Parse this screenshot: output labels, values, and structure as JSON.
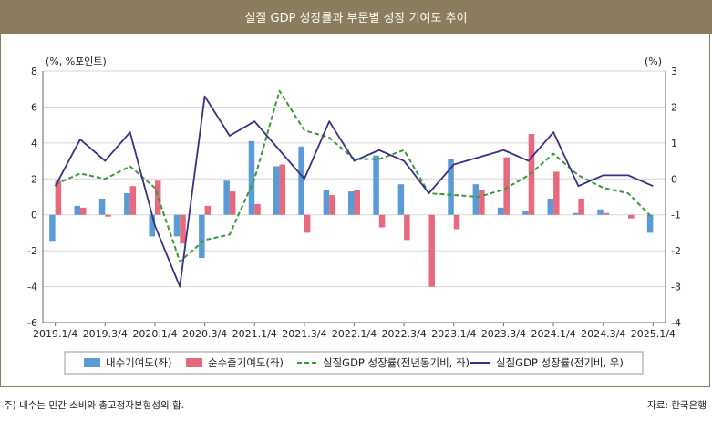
{
  "title": "실질 GDP 성장률과 부문별 성장 기여도 추이",
  "footnote": "주) 내수는 민간 소비와 총고정자본형성의 합.",
  "source": "자료: 한국은행",
  "chart_data": {
    "type": "bar",
    "left_unit": "(%, %포인트)",
    "right_unit": "(%)",
    "left_ylim": [
      -6,
      8
    ],
    "left_ticks": [
      "-6",
      "-4",
      "-2",
      "0",
      "2",
      "4",
      "6",
      "8"
    ],
    "right_ylim": [
      -4,
      3
    ],
    "right_ticks": [
      "-4",
      "-3",
      "-2",
      "-1",
      "0",
      "1",
      "2",
      "3"
    ],
    "categories": [
      "2019.1/4",
      "2019.2/4",
      "2019.3/4",
      "2019.4/4",
      "2020.1/4",
      "2020.2/4",
      "2020.3/4",
      "2020.4/4",
      "2021.1/4",
      "2021.2/4",
      "2021.3/4",
      "2021.4/4",
      "2022.1/4",
      "2022.2/4",
      "2022.3/4",
      "2022.4/4",
      "2023.1/4",
      "2023.2/4",
      "2023.3/4",
      "2023.4/4",
      "2024.1/4",
      "2024.2/4",
      "2024.3/4",
      "2024.4/4",
      "2025.1/4"
    ],
    "x_tick_labels": [
      "2019.1/4",
      "2019.3/4",
      "2020.1/4",
      "2020.3/4",
      "2021.1/4",
      "2021.3/4",
      "2022.1/4",
      "2022.3/4",
      "2023.1/4",
      "2023.3/4",
      "2024.1/4",
      "2024.3/4",
      "2025.1/4"
    ],
    "series": [
      {
        "name": "내수기여도(좌)",
        "kind": "bar",
        "axis": "left",
        "color": "#5b9bd5",
        "values": [
          -1.5,
          0.5,
          0.9,
          1.2,
          -1.2,
          -1.2,
          -2.4,
          1.9,
          4.1,
          2.7,
          3.8,
          1.4,
          1.3,
          3.3,
          1.7,
          0.0,
          3.1,
          1.7,
          0.4,
          0.2,
          0.9,
          0.1,
          0.3,
          0.0,
          -1.0
        ]
      },
      {
        "name": "순수출기여도(좌)",
        "kind": "bar",
        "axis": "left",
        "color": "#e8697d",
        "values": [
          1.9,
          0.4,
          -0.1,
          1.6,
          1.9,
          -1.6,
          0.5,
          1.3,
          0.6,
          2.8,
          -1.0,
          1.1,
          1.4,
          -0.7,
          -1.4,
          -4.0,
          -0.8,
          1.4,
          3.2,
          4.5,
          2.4,
          0.9,
          0.1,
          -0.2,
          0.0
        ]
      },
      {
        "name": "실질GDP 성장률(전년동기비, 좌)",
        "kind": "line",
        "axis": "left",
        "color": "#3a9a3a",
        "dash": true,
        "values": [
          1.7,
          2.3,
          2.0,
          2.7,
          1.5,
          -2.6,
          -1.4,
          -1.1,
          2.0,
          6.9,
          4.7,
          4.3,
          3.1,
          3.1,
          3.6,
          1.2,
          1.1,
          1.0,
          1.4,
          2.2,
          3.4,
          2.2,
          1.5,
          1.2,
          -0.2
        ]
      },
      {
        "name": "실질GDP 성장률(전기비, 우)",
        "kind": "line",
        "axis": "right",
        "color": "#3a2f84",
        "dash": false,
        "values": [
          -0.2,
          1.1,
          0.5,
          1.3,
          -1.3,
          -3.0,
          2.3,
          1.2,
          1.6,
          0.8,
          0.0,
          1.6,
          0.5,
          0.8,
          0.5,
          -0.4,
          0.4,
          0.6,
          0.8,
          0.5,
          1.3,
          -0.2,
          0.1,
          0.1,
          -0.2
        ]
      }
    ],
    "legend_position": "bottom"
  }
}
